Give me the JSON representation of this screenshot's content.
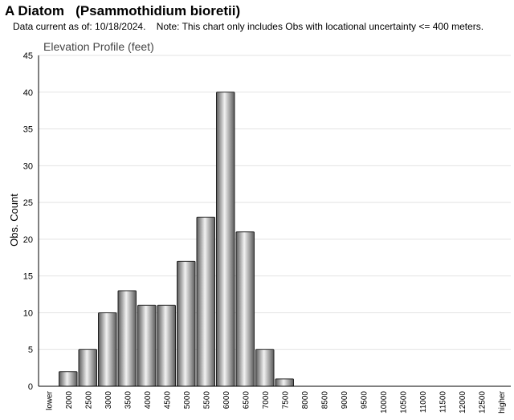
{
  "header": {
    "title": "A Diatom   (Psammothidium bioretii)",
    "note": "Data current as of: 10/18/2024.    Note: This chart only includes Obs with locational uncertainty <= 400 meters."
  },
  "colors": {
    "bar_dark": "#5a5a5a",
    "bar_light": "#f2f2f2",
    "bar_stroke": "#222222",
    "grid": "#e3e3e3",
    "axis": "#000000"
  },
  "chart_data": {
    "type": "bar",
    "title": "Elevation Profile (feet)",
    "xlabel": "",
    "ylabel": "Obs. Count",
    "ylim": [
      0,
      45
    ],
    "yticks": [
      0,
      5,
      10,
      15,
      20,
      25,
      30,
      35,
      40,
      45
    ],
    "grid": true,
    "categories": [
      "lower",
      "2000",
      "2500",
      "3000",
      "3500",
      "4000",
      "4500",
      "5000",
      "5500",
      "6000",
      "6500",
      "7000",
      "7500",
      "8000",
      "8500",
      "9000",
      "9500",
      "10000",
      "10500",
      "11000",
      "11500",
      "12000",
      "12500",
      "higher"
    ],
    "values": [
      0,
      2,
      5,
      10,
      13,
      11,
      11,
      17,
      23,
      40,
      21,
      5,
      1,
      0,
      0,
      0,
      0,
      0,
      0,
      0,
      0,
      0,
      0,
      0
    ]
  }
}
